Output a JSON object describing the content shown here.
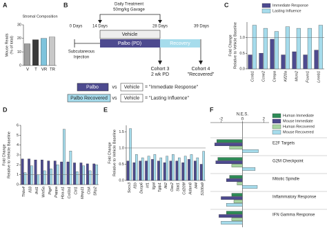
{
  "chart_data": [
    {
      "type": "bar",
      "panel": "A",
      "title": "Stromal Composition",
      "ylabel": [
        "Mouse Reads",
        "(% of total)"
      ],
      "categories": [
        "V",
        "T",
        "VR",
        "TR"
      ],
      "values": [
        16,
        19,
        20,
        21
      ],
      "colors": [
        "#9e9e9e",
        "#3a3a3a",
        "#7fc4dc",
        "#c8c8c8"
      ],
      "ylim": [
        0,
        30
      ],
      "yticks": [
        0,
        10,
        20,
        30
      ]
    },
    {
      "type": "bar",
      "panel": "C",
      "ylabel": [
        "Fold Change",
        "Relative to Vehicle Baseline"
      ],
      "categories": [
        "Ccnb1",
        "Ccne2",
        "Cenpa",
        "Kif20a",
        "Mcm2",
        "Foxm1",
        "Lmnb1"
      ],
      "series": [
        {
          "name": "Immediate Response",
          "color": "#4d4a8f",
          "values": [
            0.45,
            0.5,
            0.95,
            0.45,
            0.55,
            0.45,
            0.6
          ]
        },
        {
          "name": "Lasting Influence",
          "color": "#a6dcec",
          "values": [
            1.4,
            1.3,
            1.2,
            1.35,
            1.3,
            1.3,
            1.4
          ]
        }
      ],
      "ylim": [
        0,
        1.5
      ],
      "yticks": [
        {
          "value": 0,
          "label": "0.0"
        },
        {
          "value": 0.5,
          "label": "0.5"
        },
        {
          "value": 1,
          "label": "1.0"
        }
      ],
      "reference_line": 1
    },
    {
      "type": "bar",
      "panel": "D",
      "ylabel": [
        "Fold Change",
        "Relative to Vehicle Baseline"
      ],
      "categories": [
        "Thbs4",
        "Il33",
        "Ifrd1",
        "Wnt5a",
        "Ptgrf",
        "Pappa",
        "Hba-a1",
        "Col1b1",
        "Ctrl1",
        "Mmp11",
        "Ctsk",
        "Sfrp2"
      ],
      "series": [
        {
          "name": "Immediate Response",
          "color": "#4d4a8f",
          "values": [
            2.6,
            2.6,
            2.5,
            2.5,
            2.4,
            2.4,
            2.3,
            2.3,
            2.2,
            2.2,
            2.1,
            2.1
          ]
        },
        {
          "name": "Lasting Influence",
          "color": "#a6dcec",
          "values": [
            1.2,
            1.9,
            1.0,
            1.4,
            1.6,
            2.0,
            5.6,
            3.4,
            1.3,
            1.9,
            1.4,
            2.0
          ]
        }
      ],
      "ylim": [
        0,
        6
      ],
      "yticks": [
        0,
        1,
        2,
        3,
        4,
        5,
        6
      ],
      "reference_line": 1
    },
    {
      "type": "bar",
      "panel": "E",
      "ylabel": [
        "Fold Change",
        "Relative to Vehicle Baseline"
      ],
      "categories": [
        "Socs3",
        "Il1b",
        "Dusp6",
        "Irf1",
        "Itgal",
        "Tgtp1",
        "Ifit2",
        "Oas2",
        "Stat1",
        "Cd209f",
        "Adam8",
        "Il44",
        "S100a9"
      ],
      "series": [
        {
          "name": "Immediate Response",
          "color": "#4d4a8f",
          "values": [
            0.6,
            0.55,
            0.6,
            0.6,
            0.65,
            0.6,
            0.55,
            0.6,
            0.6,
            0.55,
            0.65,
            0.6,
            0.5
          ]
        },
        {
          "name": "Lasting Influence",
          "color": "#a6dcec",
          "values": [
            1.6,
            0.8,
            0.7,
            0.75,
            0.8,
            0.7,
            0.75,
            0.8,
            0.7,
            0.75,
            0.8,
            0.7,
            0.9
          ]
        }
      ],
      "ylim": [
        0,
        1.7
      ],
      "yticks": [
        {
          "value": 0,
          "label": "0.0"
        },
        {
          "value": 0.5,
          "label": "0.5"
        },
        {
          "value": 1,
          "label": "1.0"
        },
        {
          "value": 1.5,
          "label": "1.5"
        }
      ],
      "reference_line": 1
    },
    {
      "type": "barh",
      "panel": "F",
      "xlabel": "N.E.S.",
      "categories": [
        "E2F Targets",
        "G2M Checkpoint",
        "Mitotic Spindle",
        "Inflammatory Response",
        "IFN Gamma Response"
      ],
      "series": [
        {
          "name": "Human Immediate",
          "color": "#2e8b57",
          "values": [
            -2.4,
            -2.3,
            -1.2,
            -1.0,
            -1.5
          ]
        },
        {
          "name": "Mouse Immediate",
          "color": "#4d4a8f",
          "values": [
            -2.6,
            -2.5,
            -1.5,
            -2.0,
            -2.2
          ]
        },
        {
          "name": "Human Recovered",
          "color": "#a8d5a2",
          "values": [
            -1.2,
            -1.0,
            -0.5,
            -0.8,
            -1.0
          ]
        },
        {
          "name": "Mouse Recovered",
          "color": "#a6dcec",
          "values": [
            1.5,
            1.2,
            1.4,
            -1.5,
            -2.0
          ]
        }
      ],
      "xlim": [
        -3,
        2.5
      ],
      "xticks": [
        -2,
        0,
        2
      ]
    }
  ],
  "diagram": {
    "panel": "B",
    "treatment": [
      "Daily Treatment",
      "50mg/kg Gavage"
    ],
    "days": [
      "0 Days",
      "14 Days",
      "28 Days",
      "39 Days"
    ],
    "vehicle": "Vehicle",
    "palbo": "Palbo (PD)",
    "recovery": "Recovery",
    "injection": [
      "Subcutaneous",
      "Injection"
    ],
    "cohort3": [
      "Cohort 3",
      "2 wk PD"
    ],
    "cohort4": [
      "Cohort 4",
      "\"Recovered\""
    ],
    "legend": [
      [
        "Palbo",
        "vs",
        "Vehicle",
        "= \"Immediate Response\""
      ],
      [
        "Palbo Recovered",
        "vs",
        "Vehicle",
        "= \"Lasting Influence\""
      ]
    ]
  }
}
